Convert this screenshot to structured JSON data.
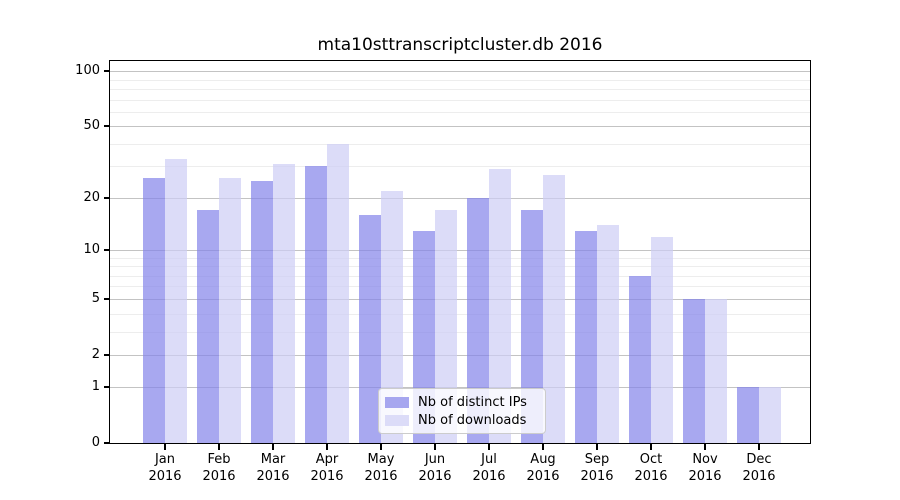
{
  "figure": {
    "title": "mta10sttranscriptcluster.db 2016"
  },
  "chart_data": {
    "type": "bar",
    "title": "mta10sttranscriptcluster.db 2016",
    "categories": [
      "Jan",
      "Feb",
      "Mar",
      "Apr",
      "May",
      "Jun",
      "Jul",
      "Aug",
      "Sep",
      "Oct",
      "Nov",
      "Dec"
    ],
    "year_label": "2016",
    "series": [
      {
        "name": "Nb of distinct IPs",
        "color": "#a6a6ef",
        "bar_fill": "rgba(131,131,234,0.7)",
        "values": [
          26,
          17,
          25,
          30,
          16,
          13,
          20,
          17,
          13,
          7,
          5,
          1
        ]
      },
      {
        "name": "Nb of downloads",
        "color": "#dcdcf8",
        "bar_fill": "rgba(205,205,245,0.7)",
        "values": [
          33,
          26,
          31,
          40,
          22,
          17,
          29,
          27,
          14,
          12,
          5,
          1
        ]
      }
    ],
    "yscale": "log1p",
    "ylim": [
      0,
      114
    ],
    "yticks": [
      0,
      1,
      2,
      5,
      10,
      20,
      50,
      100
    ],
    "yticks_minor": [
      3,
      4,
      6,
      7,
      8,
      9,
      30,
      40,
      60,
      70,
      80,
      90
    ],
    "grid": true,
    "legend_position": "lower center"
  },
  "colors": {
    "grid_major": "#c3c3c3",
    "grid_minor": "#ededed",
    "spine": "#000000",
    "background": "#ffffff"
  }
}
